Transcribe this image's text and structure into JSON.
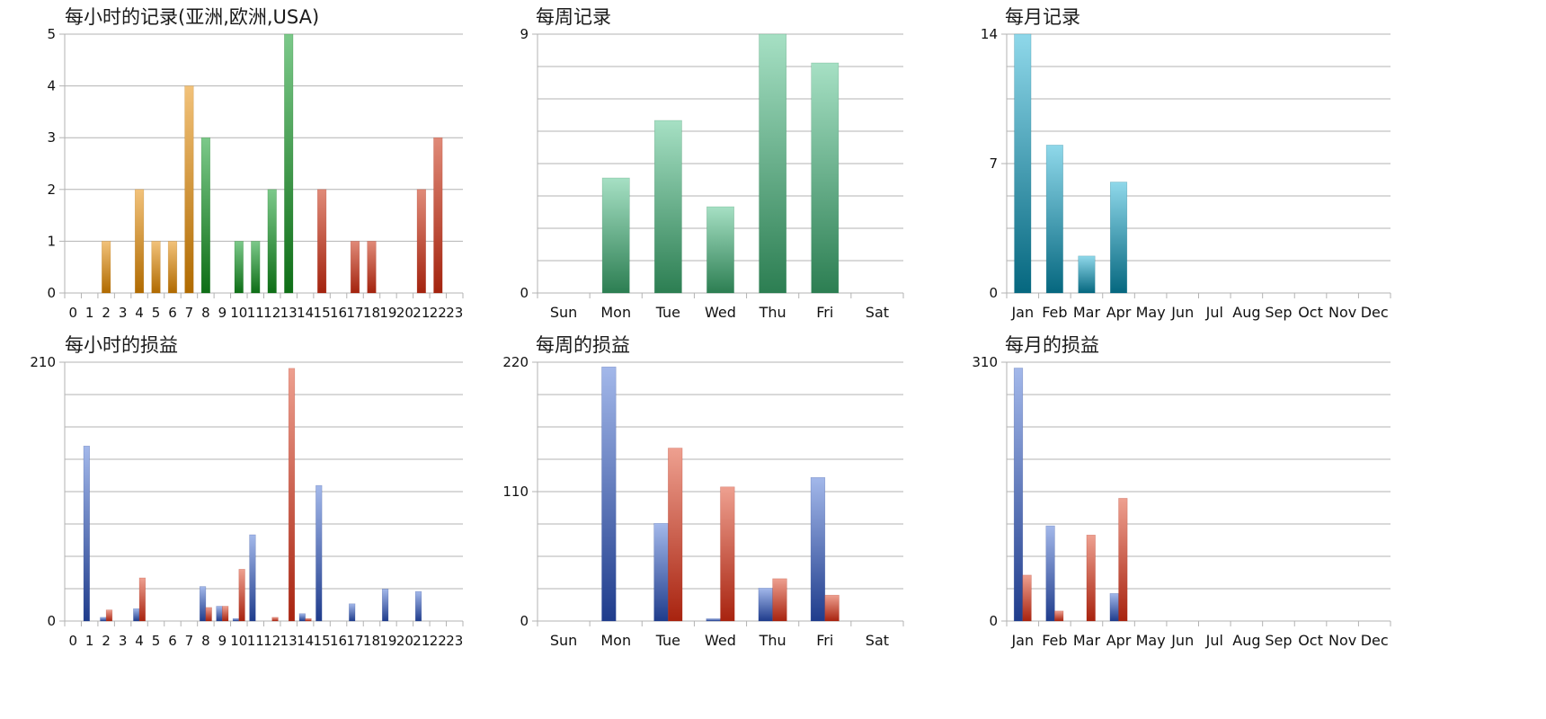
{
  "colors": {
    "orange": [
      "#f2c27a",
      "#b06a00"
    ],
    "green_dark": [
      "#7cc98a",
      "#0e6e16"
    ],
    "red_brown": [
      "#e08a78",
      "#a3230e"
    ],
    "weekly_green": [
      "#a6e0c4",
      "#2c7e52"
    ],
    "teal": [
      "#8fd8ea",
      "#05677f"
    ],
    "blue": [
      "#a3b8ea",
      "#1f3c8c"
    ],
    "red": [
      "#eea090",
      "#a8230f"
    ]
  },
  "chart_data": [
    {
      "type": "bar",
      "title": "每小时的记录(亚洲,欧洲,USA)",
      "categories": [
        "0",
        "1",
        "2",
        "3",
        "4",
        "5",
        "6",
        "7",
        "8",
        "9",
        "10",
        "11",
        "12",
        "13",
        "14",
        "15",
        "16",
        "17",
        "18",
        "19",
        "20",
        "21",
        "22",
        "23"
      ],
      "values": [
        0,
        0,
        1,
        0,
        2,
        1,
        1,
        4,
        3,
        0,
        1,
        1,
        2,
        5,
        0,
        2,
        0,
        1,
        1,
        0,
        0,
        2,
        3,
        0
      ],
      "bar_colors": [
        "orange",
        "orange",
        "orange",
        "orange",
        "orange",
        "orange",
        "orange",
        "orange",
        "green_dark",
        "green_dark",
        "green_dark",
        "green_dark",
        "green_dark",
        "green_dark",
        "red_brown",
        "red_brown",
        "red_brown",
        "red_brown",
        "red_brown",
        "red_brown",
        "red_brown",
        "red_brown",
        "red_brown",
        "red_brown"
      ],
      "ylim": [
        0,
        5
      ],
      "yticks": [
        "0",
        "1",
        "2",
        "3",
        "4",
        "5"
      ],
      "minor_gridlines": 0,
      "grid": true
    },
    {
      "type": "bar",
      "title": "每周记录",
      "categories": [
        "Sun",
        "Mon",
        "Tue",
        "Wed",
        "Thu",
        "Fri",
        "Sat"
      ],
      "values": [
        0,
        4,
        6,
        3,
        9,
        8,
        0
      ],
      "color": "weekly_green",
      "ylim": [
        0,
        9
      ],
      "yticks": [
        "0",
        "9"
      ],
      "minor_gridlines": 7,
      "grid": true
    },
    {
      "type": "bar",
      "title": "每月记录",
      "categories": [
        "Jan",
        "Feb",
        "Mar",
        "Apr",
        "May",
        "Jun",
        "Jul",
        "Aug",
        "Sep",
        "Oct",
        "Nov",
        "Dec"
      ],
      "values": [
        14,
        8,
        2,
        6,
        0,
        0,
        0,
        0,
        0,
        0,
        0,
        0
      ],
      "color": "teal",
      "ylim": [
        0,
        14
      ],
      "yticks": [
        "0",
        "7",
        "14"
      ],
      "minor_gridlines": 3,
      "grid": true
    },
    {
      "type": "bar",
      "title": "每小时的损益",
      "categories": [
        "0",
        "1",
        "2",
        "3",
        "4",
        "5",
        "6",
        "7",
        "8",
        "9",
        "10",
        "11",
        "12",
        "13",
        "14",
        "15",
        "16",
        "17",
        "18",
        "19",
        "20",
        "21",
        "22",
        "23"
      ],
      "series": [
        {
          "color": "blue",
          "values": [
            0,
            142,
            3,
            0,
            10,
            0,
            0,
            0,
            28,
            12,
            2,
            70,
            0,
            0,
            6,
            110,
            0,
            14,
            0,
            26,
            0,
            24,
            0,
            0
          ]
        },
        {
          "color": "red",
          "values": [
            0,
            0,
            9,
            0,
            35,
            0,
            0,
            0,
            11,
            12,
            42,
            0,
            3,
            205,
            2,
            0,
            0,
            0,
            0,
            0,
            0,
            0,
            0,
            0
          ]
        }
      ],
      "ylim": [
        0,
        210
      ],
      "yticks": [
        "0",
        "210"
      ],
      "minor_gridlines": 7,
      "grid": true
    },
    {
      "type": "bar",
      "title": "每周的损益",
      "categories": [
        "Sun",
        "Mon",
        "Tue",
        "Wed",
        "Thu",
        "Fri",
        "Sat"
      ],
      "series": [
        {
          "color": "blue",
          "values": [
            0,
            216,
            83,
            2,
            28,
            122,
            0
          ]
        },
        {
          "color": "red",
          "values": [
            0,
            0,
            147,
            114,
            36,
            22,
            0
          ]
        }
      ],
      "ylim": [
        0,
        220
      ],
      "yticks": [
        "0",
        "110",
        "220"
      ],
      "minor_gridlines": 3,
      "grid": true
    },
    {
      "type": "bar",
      "title": "每月的损益",
      "categories": [
        "Jan",
        "Feb",
        "Mar",
        "Apr",
        "May",
        "Jun",
        "Jul",
        "Aug",
        "Sep",
        "Oct",
        "Nov",
        "Dec"
      ],
      "series": [
        {
          "color": "blue",
          "values": [
            303,
            114,
            0,
            33,
            0,
            0,
            0,
            0,
            0,
            0,
            0,
            0
          ]
        },
        {
          "color": "red",
          "values": [
            55,
            12,
            103,
            147,
            0,
            0,
            0,
            0,
            0,
            0,
            0,
            0
          ]
        }
      ],
      "ylim": [
        0,
        310
      ],
      "yticks": [
        "0",
        "310"
      ],
      "minor_gridlines": 7,
      "grid": true
    }
  ]
}
